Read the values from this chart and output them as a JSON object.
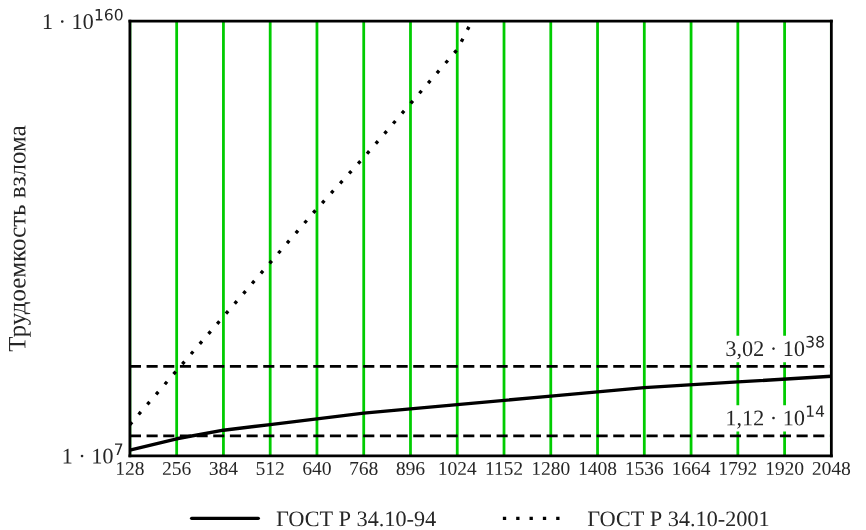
{
  "chart_data": {
    "type": "line",
    "ylabel": "Трудоемкость взлома",
    "log": "y",
    "xlim": [
      128,
      2048
    ],
    "xticks": [
      128,
      256,
      384,
      512,
      640,
      768,
      896,
      1024,
      1152,
      1280,
      1408,
      1536,
      1664,
      1792,
      1920,
      2048
    ],
    "ylim": [
      10000000.0,
      1e+160
    ],
    "yticks": [
      {
        "value": 10000000.0,
        "label": "1 · 10$^{7}$"
      },
      {
        "value": 1e+160,
        "label": "1 · 10$^{160}$"
      }
    ],
    "grid": "x",
    "legend": "bottom",
    "series": [
      {
        "name": "ГОСТ Р 34.10-94",
        "color": "#000000",
        "line_style": "solid",
        "x": [
          128,
          256,
          384,
          512,
          768,
          1024,
          1280,
          1536,
          1792,
          2048
        ],
        "values": [
          1000000000.0,
          10000000000000.0,
          1e+16,
          1e+18,
          1e+22,
          1e+25,
          1e+28,
          1e+31,
          1e+33,
          1e+35
        ]
      },
      {
        "name": "ГОСТ Р 34.10-2001",
        "color": "#000000",
        "line_style": "dotted",
        "x": [
          128,
          256,
          384,
          512,
          640,
          768,
          896,
          1024,
          1064
        ],
        "values": [
          1e+18,
          1e+37,
          1e+56,
          1e+75,
          1e+94,
          1e+112,
          1e+131,
          1e+150,
          1e+160
        ]
      }
    ],
    "ref_lines": [
      {
        "axis": "y",
        "value": 3.02e+38,
        "color": "#000000",
        "line_style": "dashed"
      },
      {
        "axis": "y",
        "value": 112000000000000.0,
        "color": "#000000",
        "line_style": "dashed"
      }
    ],
    "annotations": [
      {
        "text": "3,02 · 10$^{38}$",
        "x": 2048,
        "y": 3.02e+38
      },
      {
        "text": "1,12 · 10$^{14}$",
        "x": 2048,
        "y": 112000000000000.0
      }
    ]
  }
}
